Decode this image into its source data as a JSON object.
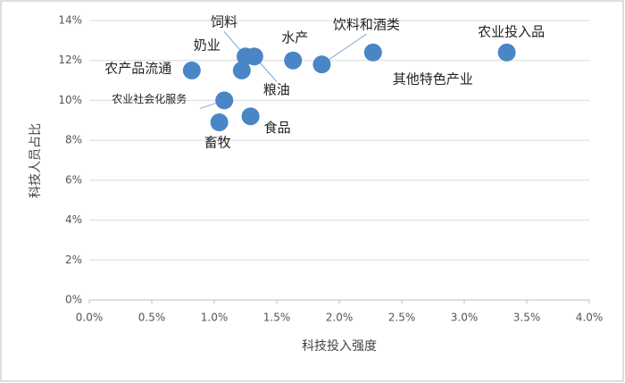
{
  "chart_data": {
    "type": "scatter",
    "x_label": "科技投入强度",
    "y_label": "科技人员占比",
    "labels": [
      "农产品流通",
      "农业社会化服务",
      "畜牧",
      "食品",
      "奶业",
      "饲料",
      "粮油",
      "水产",
      "饮料和酒类",
      "其他特色产业",
      "农业投入品"
    ],
    "x": [
      0.82,
      1.08,
      1.04,
      1.29,
      1.22,
      1.25,
      1.32,
      1.63,
      1.86,
      2.27,
      3.34
    ],
    "values": [
      11.5,
      10.0,
      8.9,
      9.2,
      11.5,
      12.2,
      12.2,
      12.0,
      11.8,
      12.4,
      12.4
    ],
    "color": "#4a86c5",
    "xlim": [
      0,
      4
    ],
    "xticks": [
      {
        "value": 0,
        "label": "0.0%"
      },
      {
        "value": 0.5,
        "label": "0.5%"
      },
      {
        "value": 1,
        "label": "1.0%"
      },
      {
        "value": 1.5,
        "label": "1.5%"
      },
      {
        "value": 2,
        "label": "2.0%"
      },
      {
        "value": 2.5,
        "label": "2.5%"
      },
      {
        "value": 3,
        "label": "3.0%"
      },
      {
        "value": 3.5,
        "label": "3.5%"
      },
      {
        "value": 4,
        "label": "4.0%"
      }
    ],
    "ylim": [
      0,
      14
    ],
    "yticks": [
      {
        "value": 0,
        "label": "0%"
      },
      {
        "value": 2,
        "label": "2%"
      },
      {
        "value": 4,
        "label": "4%"
      },
      {
        "value": 6,
        "label": "6%"
      },
      {
        "value": 8,
        "label": "8%"
      },
      {
        "value": 10,
        "label": "10%"
      },
      {
        "value": 12,
        "label": "12%"
      },
      {
        "value": 14,
        "label": "14%"
      }
    ],
    "grid": true
  }
}
